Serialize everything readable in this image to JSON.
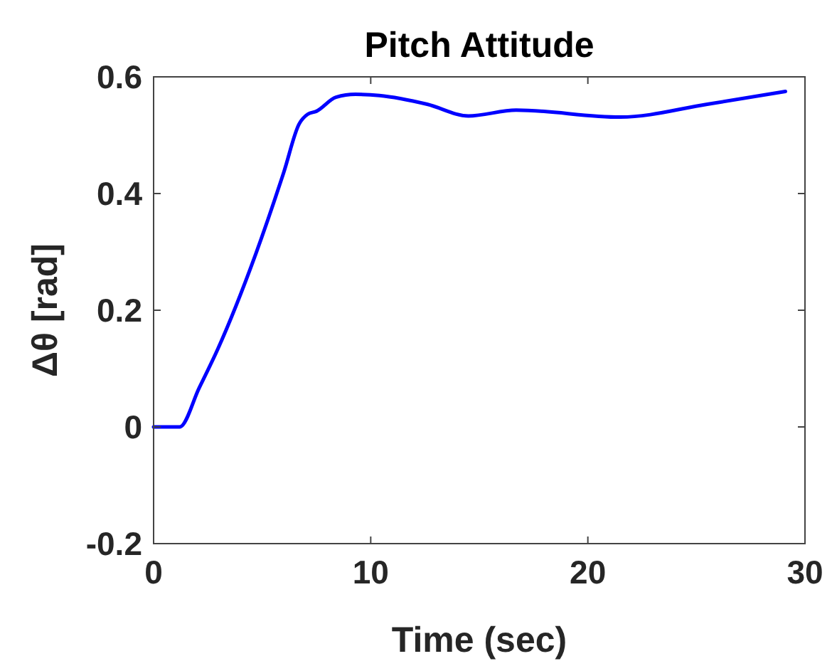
{
  "chart_data": {
    "type": "line",
    "title": "Pitch Attitude",
    "xlabel": "Time (sec)",
    "ylabel": "Δθ [rad]",
    "xlim": [
      0,
      30
    ],
    "xticks": [
      0,
      10,
      20,
      30
    ],
    "ylim": [
      -0.2,
      0.6
    ],
    "yticks": [
      -0.2,
      0,
      0.2,
      0.4,
      0.6
    ],
    "grid": false,
    "series": [
      {
        "color": "#0000ff",
        "x": [
          0,
          1.2,
          2.1,
          2.95,
          4.7,
          6.0,
          6.7,
          7.1,
          7.5,
          8.4,
          9.3,
          10.4,
          12.6,
          14.5,
          16.7,
          21.5,
          25.5,
          29.1
        ],
        "values": [
          0,
          0,
          0.067,
          0.133,
          0.296,
          0.437,
          0.519,
          0.536,
          0.541,
          0.565,
          0.57,
          0.568,
          0.553,
          0.533,
          0.543,
          0.531,
          0.553,
          0.575
        ]
      }
    ]
  }
}
